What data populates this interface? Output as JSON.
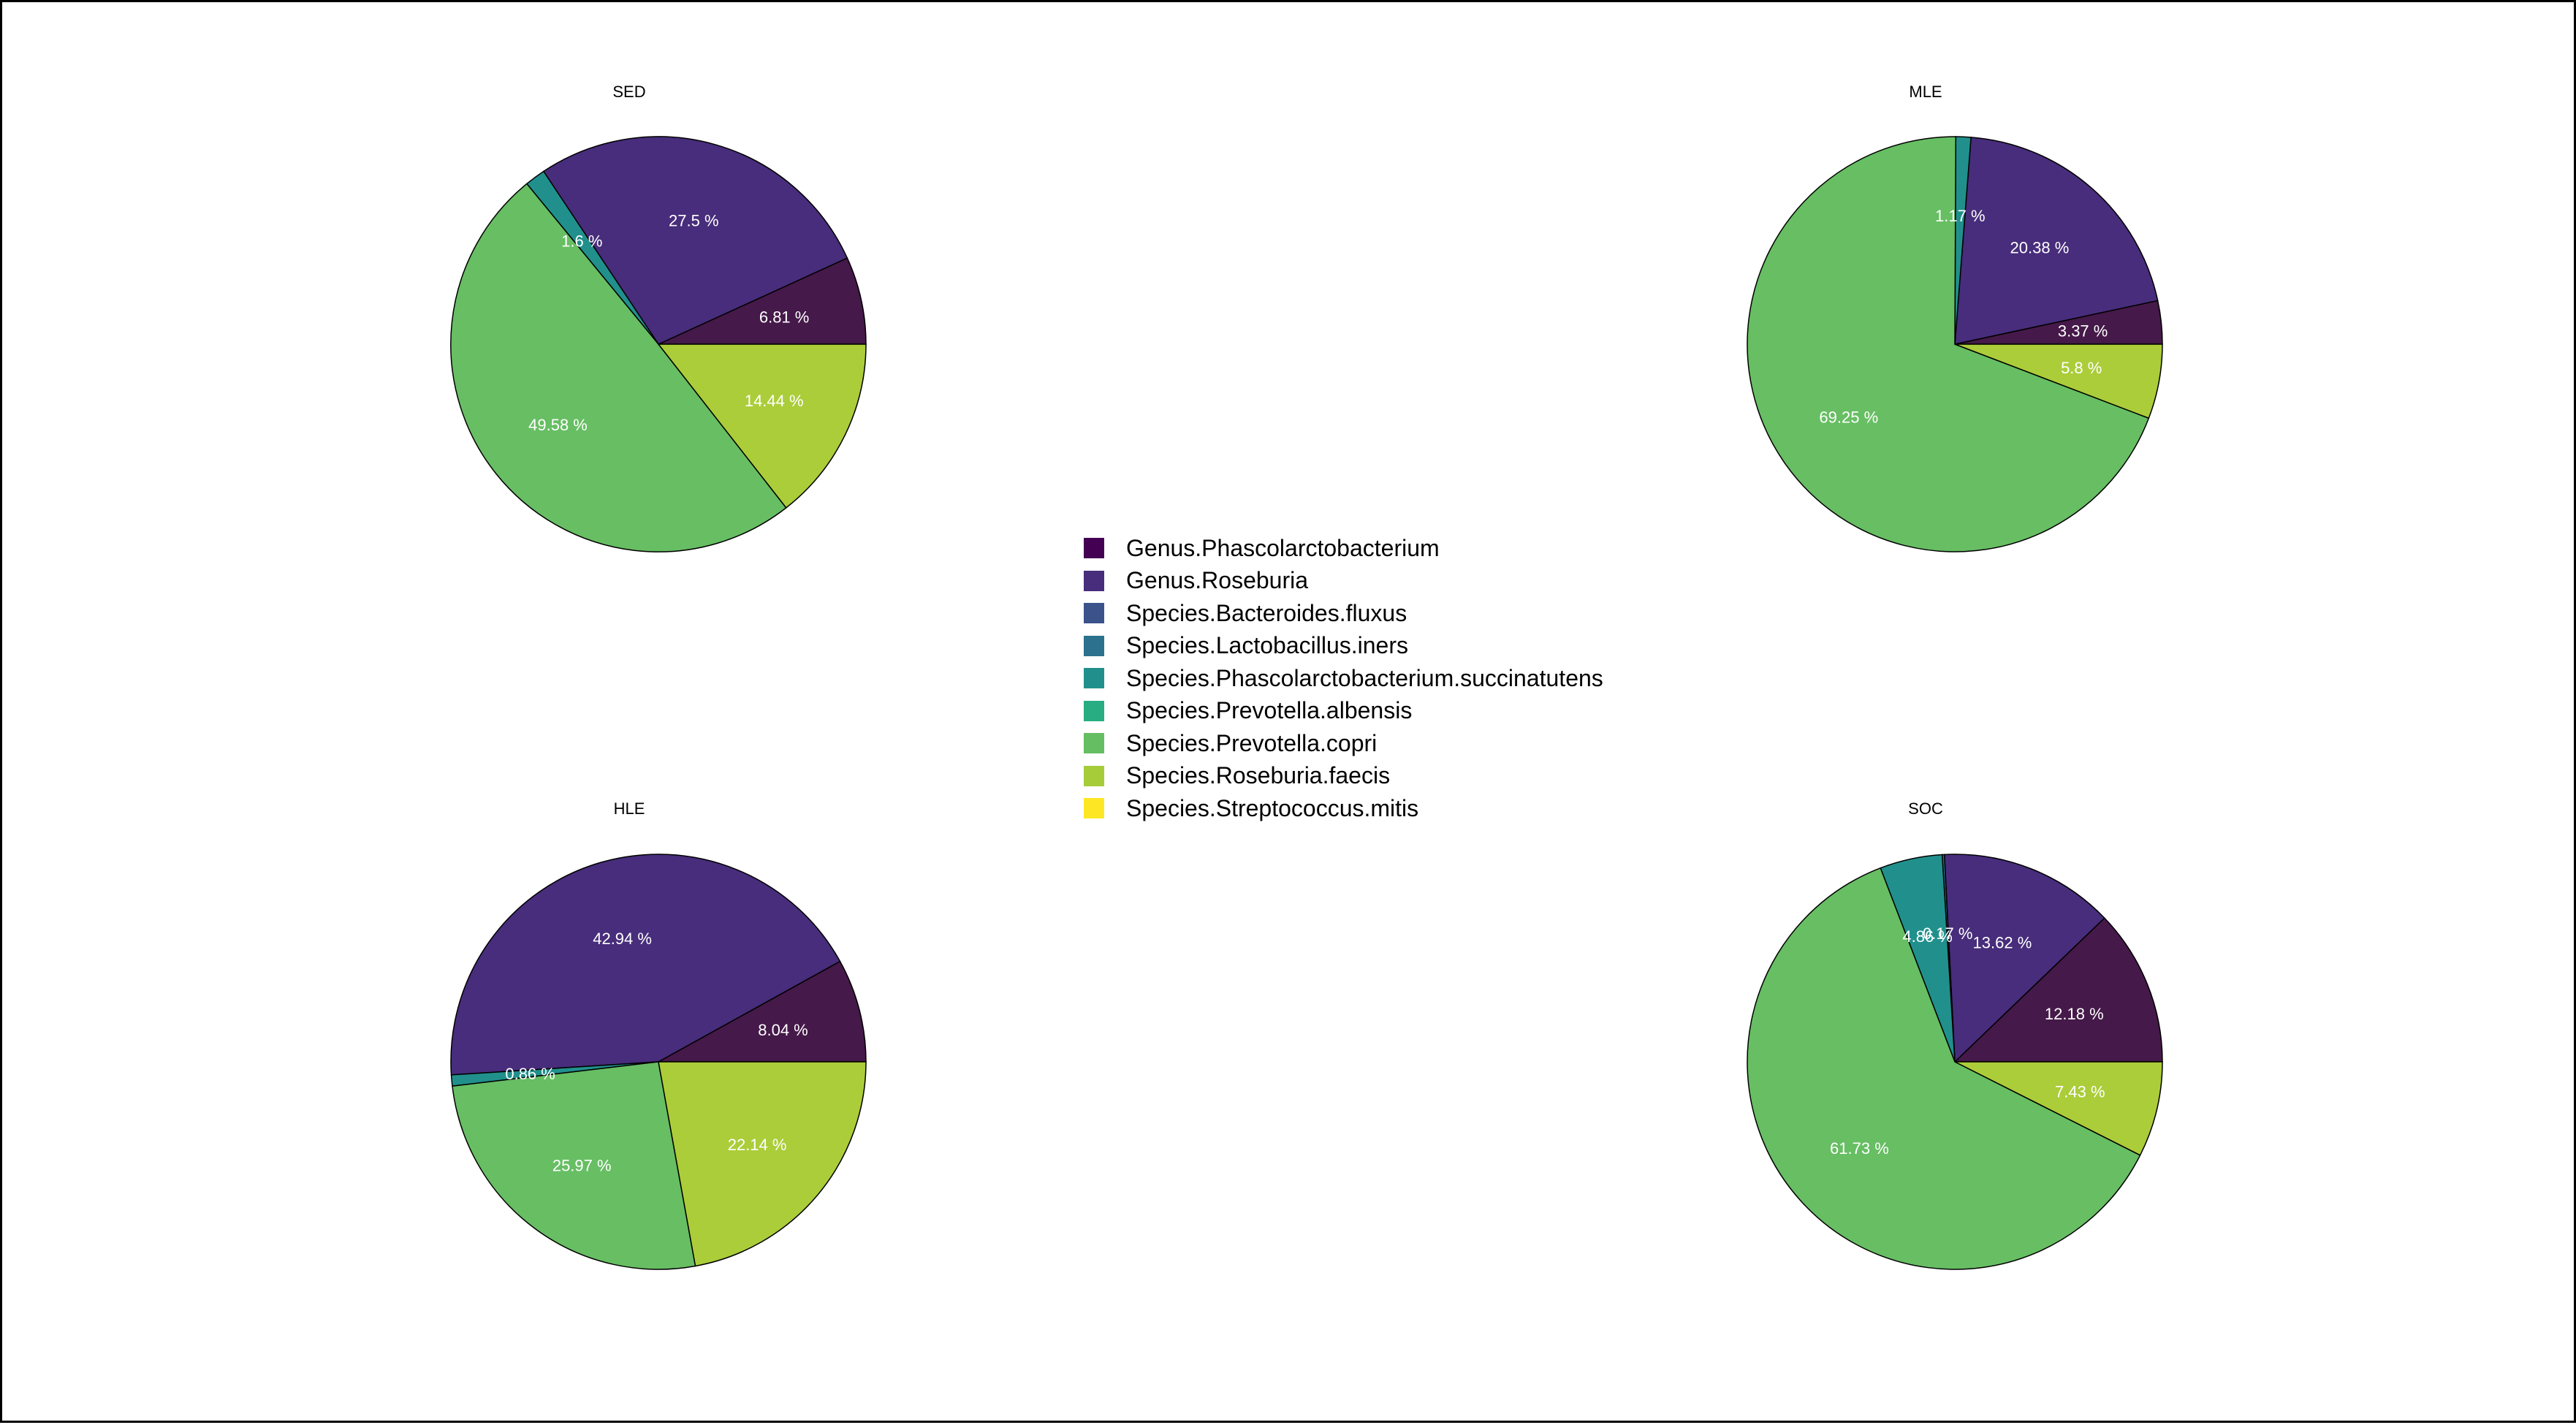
{
  "chart_data": {
    "type": "pie",
    "legend": {
      "placement": "center",
      "entries": [
        {
          "name": "Genus.Phascolarctobacterium",
          "color": "#440154"
        },
        {
          "name": "Genus.Roseburia",
          "color": "#472D7B"
        },
        {
          "name": "Species.Bacteroides.fluxus",
          "color": "#3B528B"
        },
        {
          "name": "Species.Lactobacillus.iners",
          "color": "#2C728E"
        },
        {
          "name": "Species.Phascolarctobacterium.succinatutens",
          "color": "#21908C"
        },
        {
          "name": "Species.Prevotella.albensis",
          "color": "#27AD81"
        },
        {
          "name": "Species.Prevotella.copri",
          "color": "#65BE61"
        },
        {
          "name": "Species.Roseburia.faecis",
          "color": "#A6CC3A"
        },
        {
          "name": "Species.Streptococcus.mitis",
          "color": "#FDE725"
        }
      ]
    },
    "pies": [
      {
        "title": "SED",
        "slices": [
          {
            "category": "Genus.Phascolarctobacterium",
            "value": 6.81,
            "label": "6.81 %",
            "color": "#451949"
          },
          {
            "category": "Genus.Roseburia",
            "value": 27.5,
            "label": "27.5 %",
            "color": "#472D7B"
          },
          {
            "category": "Species.Phascolarctobacterium.succinatutens",
            "value": 1.6,
            "label": "1.6 %",
            "color": "#21908C"
          },
          {
            "category": "Species.Prevotella.copri",
            "value": 49.58,
            "label": "49.58 %",
            "color": "#67BE63"
          },
          {
            "category": "Species.Roseburia.faecis",
            "value": 14.44,
            "label": "14.44 %",
            "color": "#ABCD3A"
          }
        ]
      },
      {
        "title": "MLE",
        "slices": [
          {
            "category": "Genus.Phascolarctobacterium",
            "value": 3.37,
            "label": "3.37 %",
            "color": "#451949"
          },
          {
            "category": "Genus.Roseburia",
            "value": 20.38,
            "label": "20.38 %",
            "color": "#472D7B"
          },
          {
            "category": "Species.Phascolarctobacterium.succinatutens",
            "value": 1.17,
            "label": "1.17 %",
            "color": "#21908C"
          },
          {
            "category": "Species.Prevotella.copri",
            "value": 69.25,
            "label": "69.25 %",
            "color": "#67BE63"
          },
          {
            "category": "Species.Roseburia.faecis",
            "value": 5.8,
            "label": "5.8 %",
            "color": "#ABCD3A"
          }
        ]
      },
      {
        "title": "HLE",
        "slices": [
          {
            "category": "Genus.Phascolarctobacterium",
            "value": 8.04,
            "label": "8.04 %",
            "color": "#451949"
          },
          {
            "category": "Genus.Roseburia",
            "value": 42.94,
            "label": "42.94 %",
            "color": "#472D7B"
          },
          {
            "category": "Species.Phascolarctobacterium.succinatutens",
            "value": 0.86,
            "label": "0.86 %",
            "color": "#21908C"
          },
          {
            "category": "Species.Prevotella.copri",
            "value": 25.97,
            "label": "25.97 %",
            "color": "#67BE63"
          },
          {
            "category": "Species.Roseburia.faecis",
            "value": 22.14,
            "label": "22.14 %",
            "color": "#ABCD3A"
          }
        ]
      },
      {
        "title": "SOC",
        "slices": [
          {
            "category": "Genus.Phascolarctobacterium",
            "value": 12.18,
            "label": "12.18 %",
            "color": "#451949"
          },
          {
            "category": "Genus.Roseburia",
            "value": 13.62,
            "label": "13.62 %",
            "color": "#472D7B"
          },
          {
            "category": "Species.Lactobacillus.iners",
            "value": 0.17,
            "label": "0.17 %",
            "color": "#2C728E"
          },
          {
            "category": "Species.Phascolarctobacterium.succinatutens",
            "value": 4.86,
            "label": "4.86 %",
            "color": "#21908C"
          },
          {
            "category": "Species.Prevotella.copri",
            "value": 61.73,
            "label": "61.73 %",
            "color": "#67BE63"
          },
          {
            "category": "Species.Roseburia.faecis",
            "value": 7.43,
            "label": "7.43 %",
            "color": "#ABCD3A"
          }
        ]
      }
    ]
  }
}
